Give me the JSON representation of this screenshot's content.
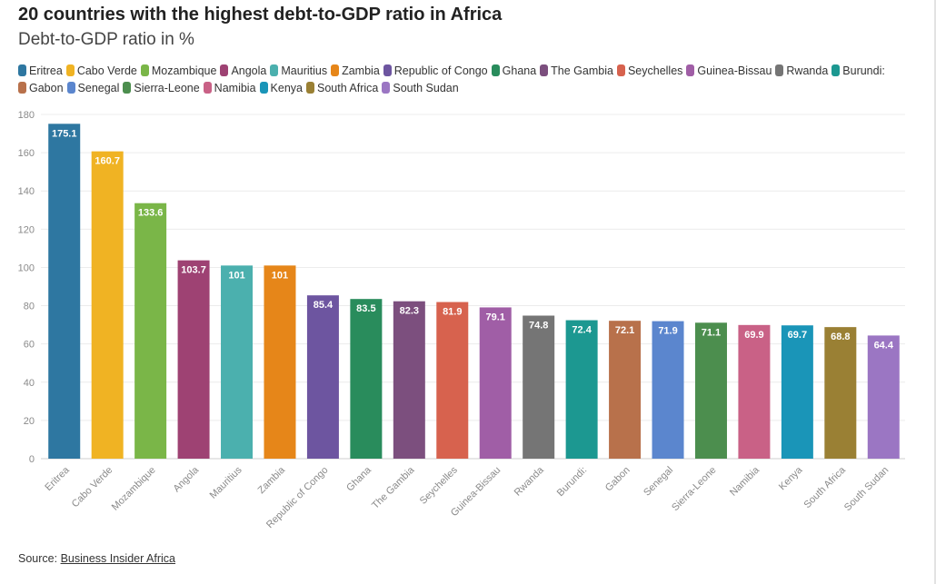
{
  "header": {
    "title": "20 countries with the highest debt-to-GDP ratio in Africa",
    "subtitle": "Debt-to-GDP ratio in %"
  },
  "source": {
    "prefix": "Source: ",
    "link_text": "Business Insider Africa"
  },
  "chart_data": {
    "type": "bar",
    "title": "20 countries with the highest debt-to-GDP ratio in Africa",
    "subtitle": "Debt-to-GDP ratio in %",
    "xlabel": "",
    "ylabel": "",
    "ylim": [
      0,
      180
    ],
    "yticks": [
      0,
      20,
      40,
      60,
      80,
      100,
      120,
      140,
      160,
      180
    ],
    "grid": true,
    "legend_position": "top",
    "categories": [
      "Eritrea",
      "Cabo Verde",
      "Mozambique",
      "Angola",
      "Mauritius",
      "Zambia",
      "Republic of Congo",
      "Ghana",
      "The Gambia",
      "Seychelles",
      "Guinea-Bissau",
      "Rwanda",
      "Burundi:",
      "Gabon",
      "Senegal",
      "Sierra-Leone",
      "Namibia",
      "Kenya",
      "South Africa",
      "South Sudan"
    ],
    "values": [
      175.1,
      160.7,
      133.6,
      103.7,
      101,
      101,
      85.4,
      83.5,
      82.3,
      81.9,
      79.1,
      74.8,
      72.4,
      72.1,
      71.9,
      71.1,
      69.9,
      69.7,
      68.8,
      64.4
    ],
    "labels": [
      "175.1",
      "160.7",
      "133.6",
      "103.7",
      "101",
      "101",
      "85.4",
      "83.5",
      "82.3",
      "81.9",
      "79.1",
      "74.8",
      "72.4",
      "72.1",
      "71.9",
      "71.1",
      "69.9",
      "69.7",
      "68.8",
      "64.4"
    ],
    "colors": [
      "#2e77a1",
      "#f0b323",
      "#7ab648",
      "#9e4273",
      "#4bb0ae",
      "#e68619",
      "#6d55a0",
      "#298c5c",
      "#7c4f7e",
      "#d7624e",
      "#a05ea6",
      "#757575",
      "#1c9891",
      "#b8714b",
      "#5b86ce",
      "#4c8e4e",
      "#c96186",
      "#1a95b8",
      "#9a8034",
      "#9b76c3"
    ]
  }
}
